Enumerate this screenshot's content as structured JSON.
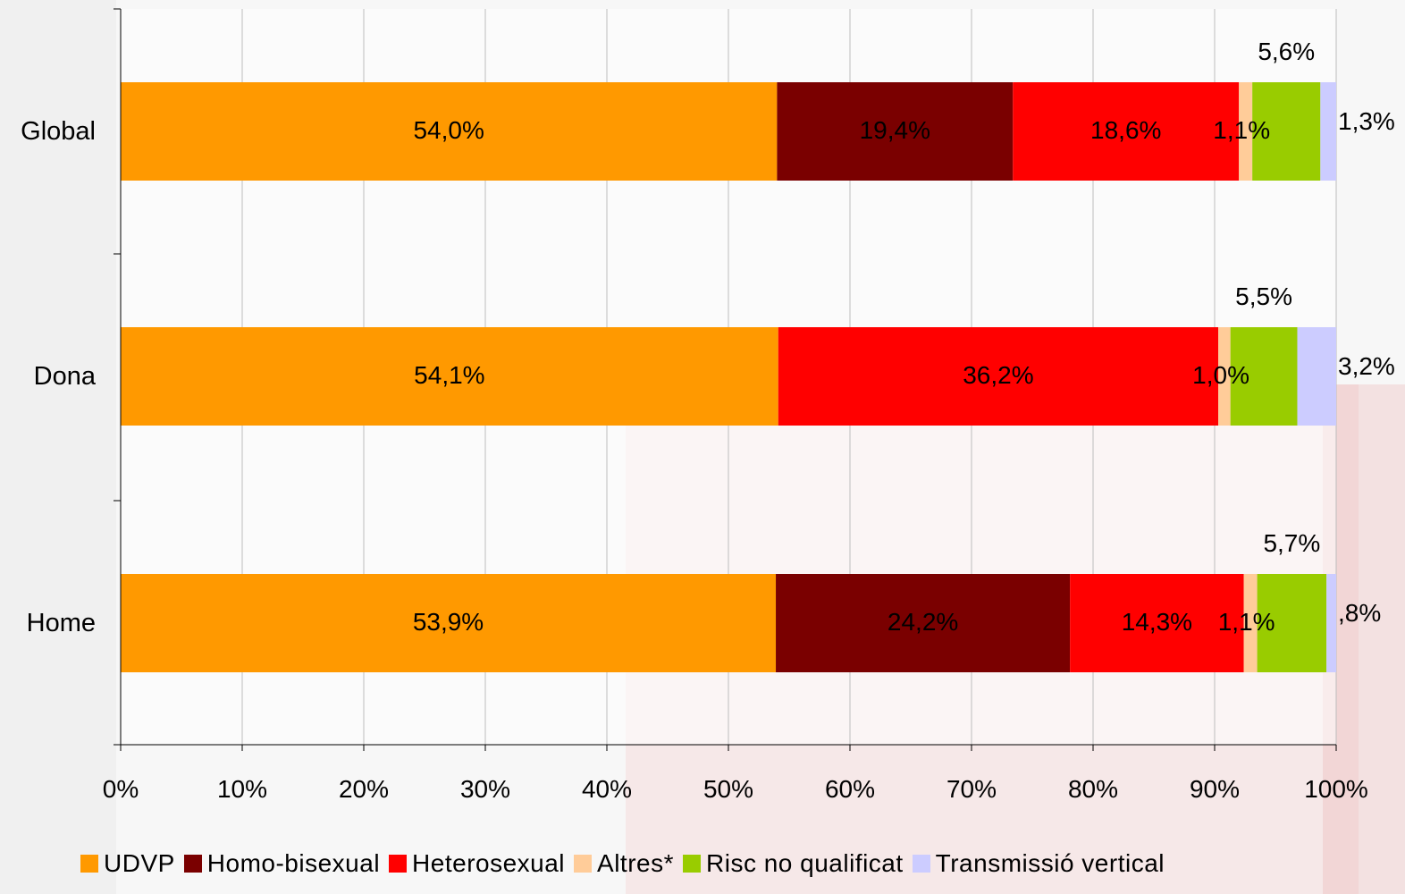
{
  "chart_data": {
    "type": "bar",
    "orientation": "horizontal",
    "stacked": "percent",
    "categories": [
      "Global",
      "Dona",
      "Home"
    ],
    "series": [
      {
        "name": "UDVP",
        "color": "#ff9900",
        "values": [
          54.0,
          54.1,
          53.9
        ],
        "labels": [
          "54,0%",
          "54,1%",
          "53,9%"
        ]
      },
      {
        "name": "Homo-bisexual",
        "color": "#7a0000",
        "values": [
          19.4,
          0,
          24.2
        ],
        "labels": [
          "19,4%",
          "",
          "24,2%"
        ]
      },
      {
        "name": "Heterosexual",
        "color": "#ff0000",
        "values": [
          18.6,
          36.2,
          14.3
        ],
        "labels": [
          "18,6%",
          "36,2%",
          "14,3%"
        ]
      },
      {
        "name": "Altres*",
        "color": "#ffcc99",
        "values": [
          1.1,
          1.0,
          1.1
        ],
        "labels": [
          "1,1%",
          "1,0%",
          "1,1%"
        ]
      },
      {
        "name": "Risc no qualificat",
        "color": "#99cc00",
        "values": [
          5.6,
          5.5,
          5.7
        ],
        "labels": [
          "5,6%",
          "5,5%",
          "5,7%"
        ]
      },
      {
        "name": "Transmissió vertical",
        "color": "#ccccff",
        "values": [
          1.3,
          3.2,
          0.8
        ],
        "labels": [
          "1,3%",
          "3,2%",
          ",8%"
        ]
      }
    ],
    "xlim": [
      0,
      100
    ],
    "xticks": [
      "0%",
      "10%",
      "20%",
      "30%",
      "40%",
      "50%",
      "60%",
      "70%",
      "80%",
      "90%",
      "100%"
    ],
    "grid": true,
    "legend_position": "bottom"
  }
}
